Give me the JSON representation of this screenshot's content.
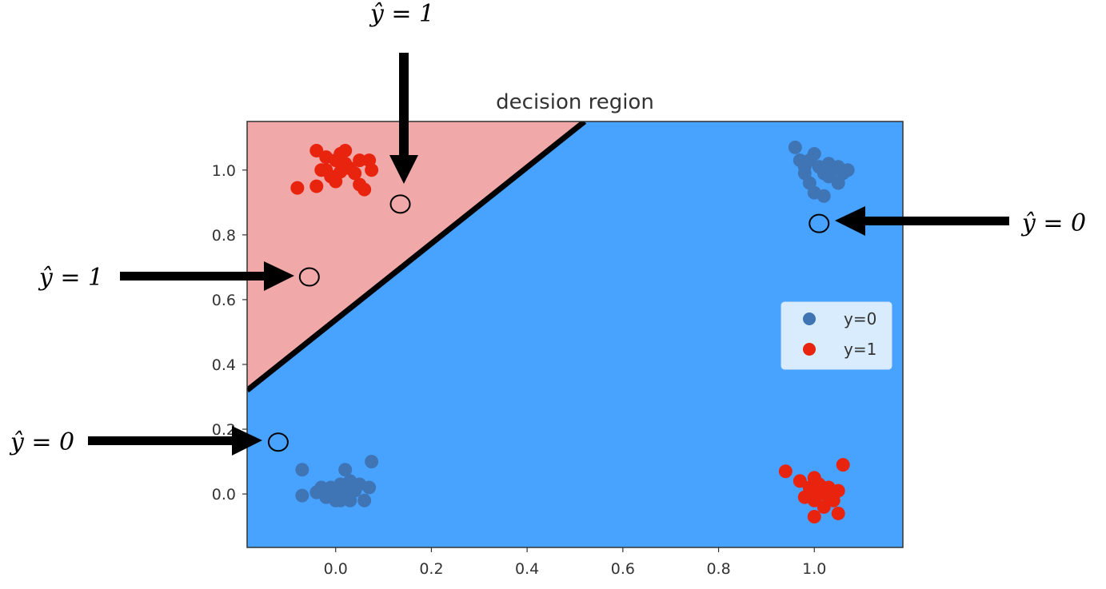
{
  "chart_data": {
    "type": "scatter",
    "title": "decision region",
    "xlim": [
      -0.185,
      1.185
    ],
    "ylim": [
      -0.165,
      1.15
    ],
    "xticks": [
      0.0,
      0.2,
      0.4,
      0.6,
      0.8,
      1.0
    ],
    "yticks": [
      0.0,
      0.2,
      0.4,
      0.6,
      0.8,
      1.0
    ],
    "xtick_labels": [
      "0.0",
      "0.2",
      "0.4",
      "0.6",
      "0.8",
      "1.0"
    ],
    "ytick_labels": [
      "0.0",
      "0.2",
      "0.4",
      "0.6",
      "0.8",
      "1.0"
    ],
    "grid": false,
    "legend_placement": "center-right",
    "decision_boundary": {
      "x": [
        -0.185,
        0.52
      ],
      "y": [
        0.32,
        1.15
      ]
    },
    "regions": [
      {
        "label": "y=1",
        "color": "#f0a8a8"
      },
      {
        "label": "y=0",
        "color": "#47a3ff"
      }
    ],
    "series": [
      {
        "name": "y=0",
        "color": "#3f74b5",
        "points": [
          [
            -0.07,
            0.075
          ],
          [
            -0.07,
            -0.005
          ],
          [
            -0.04,
            0.005
          ],
          [
            -0.03,
            0.02
          ],
          [
            -0.02,
            -0.01
          ],
          [
            -0.01,
            0.02
          ],
          [
            0.0,
            0.0
          ],
          [
            0.0,
            -0.02
          ],
          [
            0.01,
            0.03
          ],
          [
            0.02,
            0.075
          ],
          [
            0.02,
            0.01
          ],
          [
            0.03,
            0.04
          ],
          [
            0.03,
            -0.02
          ],
          [
            0.04,
            0.01
          ],
          [
            0.05,
            0.03
          ],
          [
            0.06,
            -0.02
          ],
          [
            0.07,
            0.02
          ],
          [
            0.075,
            0.1
          ],
          [
            -0.02,
            0.0
          ],
          [
            0.01,
            -0.02
          ],
          [
            0.96,
            1.07
          ],
          [
            0.97,
            1.03
          ],
          [
            0.98,
            0.99
          ],
          [
            0.99,
            0.96
          ],
          [
            0.99,
            1.03
          ],
          [
            1.0,
            1.05
          ],
          [
            1.01,
            1.01
          ],
          [
            1.02,
            0.99
          ],
          [
            1.03,
            0.98
          ],
          [
            1.04,
            1.0
          ],
          [
            1.05,
            0.96
          ],
          [
            1.05,
            1.01
          ],
          [
            1.06,
            0.99
          ],
          [
            1.07,
            1.0
          ],
          [
            1.0,
            0.93
          ],
          [
            1.02,
            0.92
          ],
          [
            0.98,
            1.01
          ],
          [
            1.03,
            1.02
          ]
        ]
      },
      {
        "name": "y=1",
        "color": "#e8230e",
        "points": [
          [
            -0.08,
            0.945
          ],
          [
            -0.04,
            1.06
          ],
          [
            -0.04,
            0.95
          ],
          [
            -0.03,
            1.0
          ],
          [
            -0.02,
            1.04
          ],
          [
            -0.01,
            0.98
          ],
          [
            0.0,
            1.03
          ],
          [
            0.0,
            0.965
          ],
          [
            0.01,
            1.05
          ],
          [
            0.01,
            0.995
          ],
          [
            0.02,
            1.02
          ],
          [
            0.02,
            1.06
          ],
          [
            0.03,
            1.005
          ],
          [
            0.04,
            0.99
          ],
          [
            0.05,
            1.03
          ],
          [
            0.05,
            0.955
          ],
          [
            0.06,
            0.94
          ],
          [
            0.07,
            1.03
          ],
          [
            0.075,
            1.0
          ],
          [
            -0.02,
            1.0
          ],
          [
            0.94,
            0.07
          ],
          [
            0.97,
            0.04
          ],
          [
            0.98,
            -0.01
          ],
          [
            0.99,
            0.02
          ],
          [
            1.0,
            0.05
          ],
          [
            1.0,
            -0.02
          ],
          [
            1.01,
            0.0
          ],
          [
            1.01,
            0.03
          ],
          [
            1.02,
            -0.04
          ],
          [
            1.02,
            0.01
          ],
          [
            1.03,
            0.02
          ],
          [
            1.04,
            -0.02
          ],
          [
            1.05,
            0.01
          ],
          [
            1.05,
            -0.06
          ],
          [
            1.06,
            0.09
          ],
          [
            0.99,
            -0.005
          ],
          [
            1.0,
            -0.07
          ],
          [
            1.03,
            -0.01
          ]
        ]
      }
    ],
    "query_points": [
      {
        "x": 0.135,
        "y": 0.895,
        "label": "ŷ = 1"
      },
      {
        "x": -0.055,
        "y": 0.67,
        "label": "ŷ = 1"
      },
      {
        "x": 1.01,
        "y": 0.835,
        "label": "ŷ = 0"
      },
      {
        "x": -0.12,
        "y": 0.16,
        "label": "ŷ = 0"
      }
    ]
  },
  "legend": {
    "items": [
      {
        "label": "y=0",
        "color": "#3f74b5"
      },
      {
        "label": "y=1",
        "color": "#e8230e"
      }
    ]
  },
  "annotations": [
    {
      "text": "ŷ = 1"
    },
    {
      "text": "ŷ = 1"
    },
    {
      "text": "ŷ = 0"
    },
    {
      "text": "ŷ = 0"
    }
  ]
}
